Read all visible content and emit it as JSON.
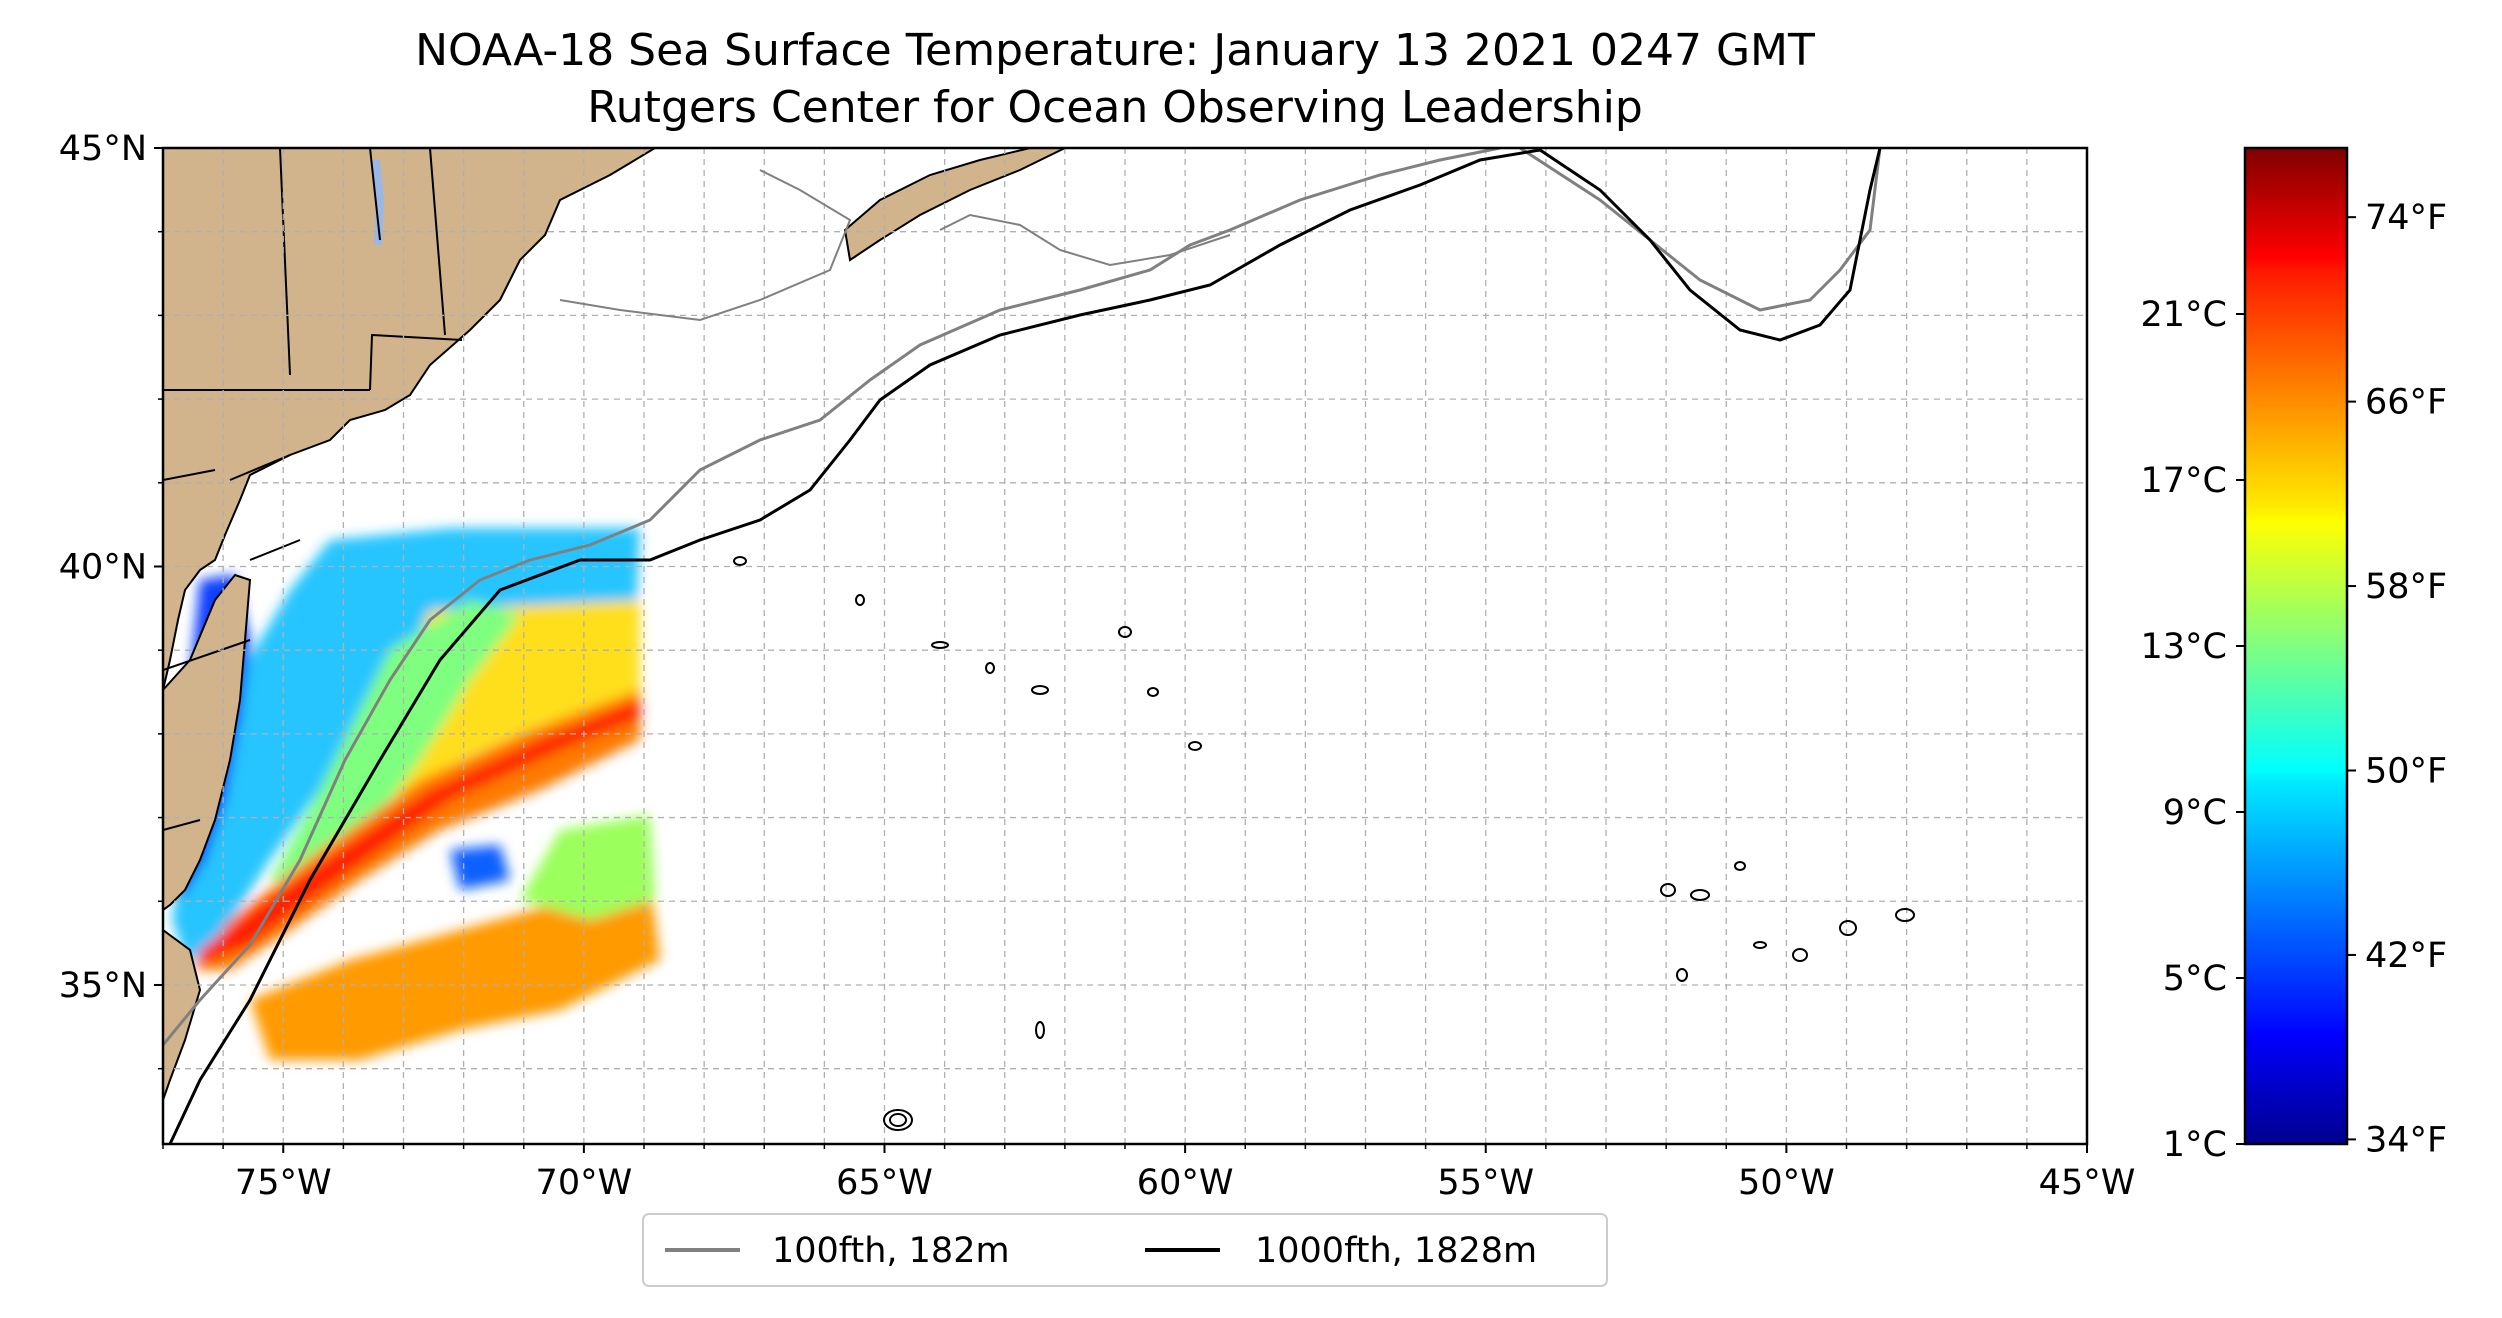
{
  "map": {
    "title_line1": "NOAA-18 Sea Surface Temperature: January 13 2021 0247 GMT",
    "title_line2": "Rutgers Center for Ocean Observing Leadership",
    "projection": "PlateCarree",
    "extent": {
      "lon_min": -77,
      "lon_max": -45,
      "lat_min": 33.1,
      "lat_max": 45
    },
    "x_ticks": [
      {
        "lon": -75,
        "label": "75°W"
      },
      {
        "lon": -70,
        "label": "70°W"
      },
      {
        "lon": -65,
        "label": "65°W"
      },
      {
        "lon": -60,
        "label": "60°W"
      },
      {
        "lon": -55,
        "label": "55°W"
      },
      {
        "lon": -50,
        "label": "50°W"
      },
      {
        "lon": -45,
        "label": "45°W"
      }
    ],
    "y_ticks": [
      {
        "lat": 45,
        "label": "45°N"
      },
      {
        "lat": 40,
        "label": "40°N"
      },
      {
        "lat": 35,
        "label": "35°N"
      }
    ],
    "grid": "dashed, 1 degree",
    "colors": {
      "land": "#d2b48c",
      "lakes": "#9ab8e6",
      "coast": "#000000",
      "isobath_100": "#808080",
      "isobath_1000": "#000000"
    }
  },
  "legend": {
    "placement": "bottom-center",
    "items": [
      {
        "label": "100fth, 182m",
        "color": "#808080"
      },
      {
        "label": "1000fth, 1828m",
        "color": "#000000"
      }
    ]
  },
  "colorbar": {
    "colormap": "jet",
    "range_f": [
      33.8,
      77
    ],
    "celsius_labels": [
      "1°C",
      "5°C",
      "9°C",
      "13°C",
      "17°C",
      "21°C"
    ],
    "fahrenheit_labels": [
      "34°F",
      "42°F",
      "50°F",
      "58°F",
      "66°F",
      "74°F"
    ]
  },
  "chart_data": {
    "type": "heatmap",
    "variable": "Sea Surface Temperature",
    "units": "°F",
    "colormap": "jet",
    "vmin_f": 33.8,
    "vmax_f": 77,
    "data_coverage": {
      "lon_range": [
        -77,
        -69
      ],
      "lat_range": [
        33.4,
        40.6
      ]
    },
    "approx_regions": [
      {
        "region": "Chesapeake Bay / Delaware Bay",
        "sst_f": 38
      },
      {
        "region": "nearshore mid-Atlantic shelf",
        "sst_f": 46
      },
      {
        "region": "outer shelf / slope",
        "sst_f": 54
      },
      {
        "region": "slope sea off NJ",
        "sst_f": 60
      },
      {
        "region": "Gulf Stream core",
        "sst_f": 76
      },
      {
        "region": "south of Gulf Stream",
        "sst_f": 66
      }
    ]
  }
}
